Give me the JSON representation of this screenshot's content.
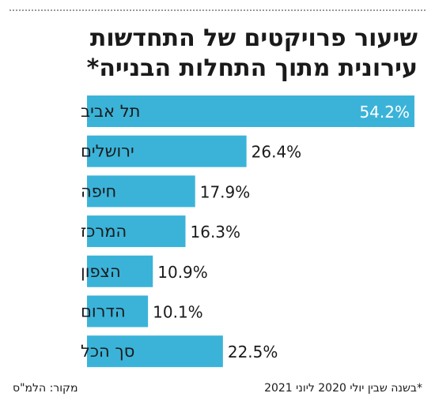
{
  "title": {
    "line1": "שיעור פרויקטים של התחדשות",
    "line2": "עירונית מתוך התחלות הבנייה*"
  },
  "footer": {
    "footnote": "*בשנה שבין יולי 2020 ליוני 2021",
    "source": "מקור: הלמ\"ס"
  },
  "colors": {
    "bar": "#3bb3d9",
    "text": "#1a1a1a"
  },
  "chart_data": {
    "type": "bar",
    "orientation": "horizontal",
    "title": "שיעור פרויקטים של התחדשות עירונית מתוך התחלות הבנייה*",
    "categories": [
      "תל אביב",
      "ירושלים",
      "חיפה",
      "המרכז",
      "הצפון",
      "הדרום",
      "סך הכל"
    ],
    "values": [
      54.2,
      26.4,
      17.9,
      16.3,
      10.9,
      10.1,
      22.5
    ],
    "value_labels": [
      "54.2%",
      "26.4%",
      "17.9%",
      "16.3%",
      "10.9%",
      "10.1%",
      "22.5%"
    ],
    "xlim": [
      0,
      54.2
    ],
    "grid": false,
    "legend": "none"
  }
}
